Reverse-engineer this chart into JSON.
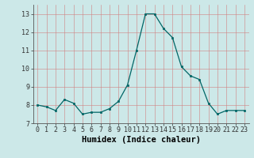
{
  "x": [
    0,
    1,
    2,
    3,
    4,
    5,
    6,
    7,
    8,
    9,
    10,
    11,
    12,
    13,
    14,
    15,
    16,
    17,
    18,
    19,
    20,
    21,
    22,
    23
  ],
  "y": [
    8.0,
    7.9,
    7.7,
    8.3,
    8.1,
    7.5,
    7.6,
    7.6,
    7.8,
    8.2,
    9.1,
    11.0,
    13.0,
    13.0,
    12.2,
    11.7,
    10.1,
    9.6,
    9.4,
    8.1,
    7.5,
    7.7,
    7.7,
    7.7
  ],
  "xlabel": "Humidex (Indice chaleur)",
  "ylim": [
    7,
    13.5
  ],
  "yticks": [
    7,
    8,
    9,
    10,
    11,
    12,
    13
  ],
  "xticks": [
    0,
    1,
    2,
    3,
    4,
    5,
    6,
    7,
    8,
    9,
    10,
    11,
    12,
    13,
    14,
    15,
    16,
    17,
    18,
    19,
    20,
    21,
    22,
    23
  ],
  "line_color": "#006666",
  "marker_color": "#006666",
  "bg_color": "#cce8e8",
  "grid_color": "#b0c8c8",
  "tick_label_fontsize": 6.0,
  "xlabel_fontsize": 7.5
}
